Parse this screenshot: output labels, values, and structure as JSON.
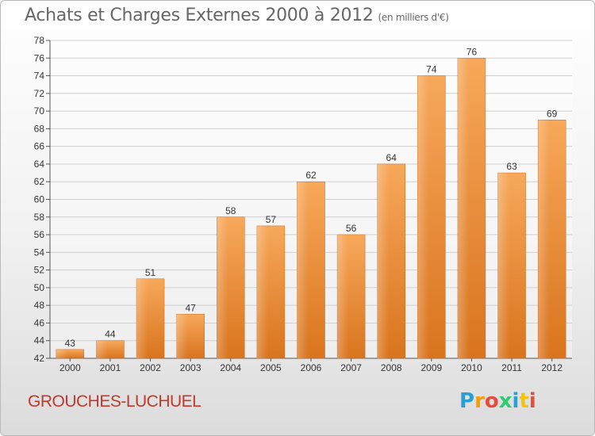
{
  "title": "Achats et Charges Externes 2000 à 2012",
  "subtitle": "(en milliers d'€)",
  "commune": "GROUCHES-LUCHUEL",
  "logo": {
    "letters": [
      "P",
      "r",
      "o",
      "x",
      "i",
      "t",
      "i"
    ],
    "colors": [
      "#2a9fd6",
      "#f39c12",
      "#e74c3c",
      "#2ecc71",
      "#2a9fd6",
      "#f1c40f",
      "#e74c3c"
    ]
  },
  "colors": {
    "bar_top": "#f7a85a",
    "bar_bottom": "#d9741e",
    "title": "#666666",
    "commune": "#c0392b"
  },
  "chart_data": {
    "type": "bar",
    "categories": [
      "2000",
      "2001",
      "2002",
      "2003",
      "2004",
      "2005",
      "2006",
      "2007",
      "2008",
      "2009",
      "2010",
      "2011",
      "2012"
    ],
    "values": [
      43,
      44,
      51,
      47,
      58,
      57,
      62,
      56,
      64,
      74,
      76,
      63,
      69
    ],
    "ylim": [
      42,
      78
    ],
    "yticks": [
      42,
      44,
      46,
      48,
      50,
      52,
      54,
      56,
      58,
      60,
      62,
      64,
      66,
      68,
      70,
      72,
      74,
      76,
      78
    ],
    "grid": true,
    "legend": "none"
  }
}
